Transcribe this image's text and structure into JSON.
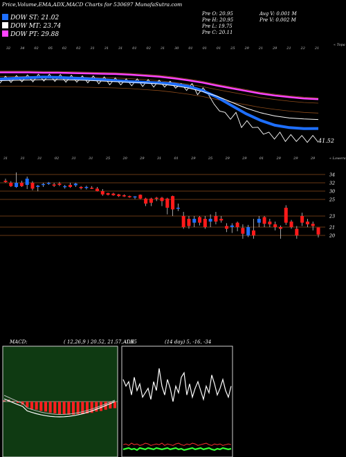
{
  "header": {
    "title": "Price,Volume,EMA,ADX,MACD Charts for 530697 MunafaSutra.com",
    "legend": [
      {
        "label": "DOW ST: 21.02",
        "color": "#1e6fff"
      },
      {
        "label": "DOW MT: 23.74",
        "color": "#ffffff"
      },
      {
        "label": "DOW PT: 29.88",
        "color": "#ff44ff"
      }
    ],
    "ohlc": [
      "Pre O: 20.95",
      "Pre H: 20.95",
      "Pre L: 19.75",
      "Pre C: 20.11"
    ],
    "avg_vol": "Avg V: 0.001 M",
    "pre_vol": "Pre V: 0.002 M"
  },
  "top_panel": {
    "corner_label": "« Topa",
    "date_labels": [
      "32",
      "34",
      "02",
      "05",
      "02",
      "02",
      "31",
      "31",
      "31",
      "01",
      "02",
      "31",
      "30",
      "01",
      "01",
      "01",
      "25",
      "29",
      "21",
      "29",
      "21",
      "22",
      "21"
    ],
    "value_label": "41.52",
    "colors": {
      "blue": "#1e6fff",
      "magenta": "#ff44ff",
      "brown": "#8b4a1a",
      "white": "#ffffff"
    }
  },
  "bottom_panel": {
    "corner_label": "« Lowera",
    "date_labels": [
      "31",
      "31",
      "31",
      "02",
      "31",
      "31",
      "25",
      "20",
      "29",
      "31",
      "01",
      "29",
      "25",
      "29",
      "29",
      "01",
      "29",
      "29",
      "29"
    ],
    "price_levels": [
      "34",
      "32",
      "30",
      "25",
      "23",
      "21",
      "20"
    ]
  },
  "macd": {
    "label": "MACD:",
    "params": "( 12,26,9 ) 20.52, 21.57, -1.05"
  },
  "adx": {
    "label": "ADX",
    "params": "(14 day) 5, -16, -34"
  },
  "chart_data": [
    {
      "type": "line",
      "panel": "ema-price",
      "series": [
        {
          "name": "DOW ST",
          "values": [
            36.0,
            36.2,
            36.4,
            36.6,
            36.5,
            36.3,
            36.1,
            35.8,
            35.5,
            35.2,
            35.0,
            34.8,
            34.5,
            33.8,
            32.5,
            30.5,
            28.0,
            25.5,
            23.5,
            22.0,
            21.3,
            21.0,
            21.02
          ]
        },
        {
          "name": "DOW MT",
          "values": [
            35.5,
            35.6,
            35.7,
            35.8,
            35.8,
            35.7,
            35.6,
            35.4,
            35.2,
            35.0,
            34.8,
            34.5,
            34.0,
            33.3,
            32.2,
            30.8,
            29.0,
            27.2,
            25.8,
            24.8,
            24.2,
            23.9,
            23.74
          ]
        },
        {
          "name": "DOW PT",
          "values": [
            38.0,
            38.0,
            38.0,
            37.9,
            37.9,
            37.8,
            37.7,
            37.6,
            37.5,
            37.3,
            37.0,
            36.7,
            36.2,
            35.6,
            34.9,
            34.0,
            33.2,
            32.4,
            31.6,
            31.0,
            30.5,
            30.1,
            29.88
          ]
        }
      ]
    },
    {
      "type": "candlestick",
      "panel": "price",
      "y_labels": [
        34,
        32,
        30,
        25,
        23,
        21,
        20
      ],
      "candles": [
        {
          "o": 32.5,
          "h": 33.0,
          "l": 32.0,
          "c": 32.2
        },
        {
          "o": 32.0,
          "h": 32.4,
          "l": 31.0,
          "c": 31.2
        },
        {
          "o": 31.0,
          "h": 34.5,
          "l": 30.8,
          "c": 32.0
        },
        {
          "o": 32.0,
          "h": 32.5,
          "l": 31.0,
          "c": 31.2
        },
        {
          "o": 31.5,
          "h": 33.5,
          "l": 30.5,
          "c": 33.0
        },
        {
          "o": 32.0,
          "h": 32.4,
          "l": 30.2,
          "c": 30.6
        },
        {
          "o": 31.0,
          "h": 31.5,
          "l": 29.9,
          "c": 31.3
        },
        {
          "o": 31.5,
          "h": 32.0,
          "l": 31.0,
          "c": 31.7
        },
        {
          "o": 31.8,
          "h": 32.2,
          "l": 31.5,
          "c": 32.0
        },
        {
          "o": 31.6,
          "h": 32.0,
          "l": 31.0,
          "c": 31.3
        },
        {
          "o": 31.8,
          "h": 32.2,
          "l": 31.2,
          "c": 31.5
        },
        {
          "o": 31.0,
          "h": 31.5,
          "l": 30.6,
          "c": 31.2
        },
        {
          "o": 31.5,
          "h": 32.0,
          "l": 30.8,
          "c": 31.0
        },
        {
          "o": 31.4,
          "h": 32.0,
          "l": 31.0,
          "c": 31.8
        },
        {
          "o": 31.0,
          "h": 31.2,
          "l": 30.4,
          "c": 30.7
        },
        {
          "o": 30.8,
          "h": 31.3,
          "l": 30.4,
          "c": 31.0
        },
        {
          "o": 30.8,
          "h": 31.2,
          "l": 30.5,
          "c": 30.6
        },
        {
          "o": 30.6,
          "h": 31.0,
          "l": 29.8,
          "c": 30.0
        },
        {
          "o": 30.0,
          "h": 30.5,
          "l": 27.2,
          "c": 28.0
        },
        {
          "o": 28.8,
          "h": 29.0,
          "l": 27.4,
          "c": 27.8
        },
        {
          "o": 28.5,
          "h": 29.0,
          "l": 27.2,
          "c": 27.5
        },
        {
          "o": 28.0,
          "h": 28.3,
          "l": 26.5,
          "c": 27.0
        },
        {
          "o": 27.5,
          "h": 28.0,
          "l": 26.5,
          "c": 26.8
        },
        {
          "o": 27.0,
          "h": 27.3,
          "l": 26.0,
          "c": 26.3
        },
        {
          "o": 26.5,
          "h": 27.0,
          "l": 25.2,
          "c": 26.8
        },
        {
          "o": 27.8,
          "h": 28.0,
          "l": 25.2,
          "c": 25.5
        },
        {
          "o": 25.5,
          "h": 26.0,
          "l": 24.2,
          "c": 24.5
        },
        {
          "o": 25.5,
          "h": 26.0,
          "l": 24.2,
          "c": 24.6
        },
        {
          "o": 26.0,
          "h": 26.5,
          "l": 24.8,
          "c": 25.5
        },
        {
          "o": 26.0,
          "h": 26.5,
          "l": 24.2,
          "c": 24.8
        },
        {
          "o": 25.5,
          "h": 26.0,
          "l": 23.2,
          "c": 24.0
        },
        {
          "o": 27.0,
          "h": 27.3,
          "l": 23.0,
          "c": 23.8
        },
        {
          "o": 24.0,
          "h": 24.5,
          "l": 23.6,
          "c": 24.0
        },
        {
          "o": 23.0,
          "h": 23.5,
          "l": 20.8,
          "c": 21.0
        },
        {
          "o": 22.5,
          "h": 23.0,
          "l": 20.8,
          "c": 21.2
        },
        {
          "o": 21.8,
          "h": 23.0,
          "l": 21.0,
          "c": 22.5
        },
        {
          "o": 22.8,
          "h": 23.0,
          "l": 21.3,
          "c": 21.8
        },
        {
          "o": 22.5,
          "h": 23.0,
          "l": 20.8,
          "c": 21.0
        },
        {
          "o": 22.0,
          "h": 23.2,
          "l": 21.0,
          "c": 22.5
        },
        {
          "o": 23.0,
          "h": 23.5,
          "l": 21.5,
          "c": 22.0
        },
        {
          "o": 22.5,
          "h": 23.0,
          "l": 21.8,
          "c": 22.2
        },
        {
          "o": 21.2,
          "h": 21.7,
          "l": 20.4,
          "c": 20.8
        },
        {
          "o": 21.0,
          "h": 21.7,
          "l": 20.3,
          "c": 21.3
        },
        {
          "o": 21.8,
          "h": 22.0,
          "l": 20.5,
          "c": 21.0
        },
        {
          "o": 20.9,
          "h": 21.5,
          "l": 19.6,
          "c": 20.2
        },
        {
          "o": 20.0,
          "h": 21.4,
          "l": 19.8,
          "c": 21.0
        },
        {
          "o": 20.6,
          "h": 22.5,
          "l": 19.6,
          "c": 20.0
        },
        {
          "o": 21.8,
          "h": 23.0,
          "l": 21.0,
          "c": 22.5
        },
        {
          "o": 22.8,
          "h": 23.0,
          "l": 21.0,
          "c": 21.6
        },
        {
          "o": 22.0,
          "h": 22.5,
          "l": 21.0,
          "c": 21.5
        },
        {
          "o": 21.5,
          "h": 22.0,
          "l": 20.6,
          "c": 21.0
        },
        {
          "o": 21.0,
          "h": 21.3,
          "l": 19.6,
          "c": 20.8
        },
        {
          "o": 24.0,
          "h": 24.3,
          "l": 21.4,
          "c": 21.8
        },
        {
          "o": 22.0,
          "h": 22.3,
          "l": 20.8,
          "c": 21.0
        },
        {
          "o": 20.8,
          "h": 21.2,
          "l": 19.6,
          "c": 20.0
        },
        {
          "o": 23.0,
          "h": 23.4,
          "l": 21.2,
          "c": 21.8
        },
        {
          "o": 22.0,
          "h": 22.5,
          "l": 21.0,
          "c": 21.5
        },
        {
          "o": 21.6,
          "h": 22.0,
          "l": 20.6,
          "c": 21.2
        },
        {
          "o": 20.95,
          "h": 20.95,
          "l": 19.75,
          "c": 20.11
        }
      ]
    },
    {
      "type": "bar",
      "panel": "macd-histogram",
      "values": [
        0.2,
        0.3,
        0.1,
        -0.2,
        -0.5,
        -0.9,
        -1.2,
        -1.3,
        -1.5,
        -1.6,
        -1.8,
        -1.9,
        -2.0,
        -2.0,
        -2.1,
        -2.1,
        -2.0,
        -2.0,
        -1.9,
        -1.8,
        -1.6,
        -1.5,
        -1.3,
        -1.1,
        -1.05
      ]
    },
    {
      "type": "line",
      "panel": "adx",
      "series": [
        {
          "name": "ADX",
          "values": [
            25,
            22,
            24,
            18,
            26,
            20,
            23,
            17,
            19,
            21,
            16,
            24,
            20,
            30,
            22,
            18,
            25,
            21,
            15,
            22,
            19,
            26,
            28,
            18,
            23,
            17,
            21,
            24,
            20,
            16,
            22,
            19,
            27,
            23,
            18,
            21,
            25,
            20,
            17,
            22
          ]
        },
        {
          "name": "+DI",
          "values": [
            8,
            9,
            7,
            10,
            8,
            9,
            7,
            8,
            10,
            9,
            7,
            8,
            9,
            8,
            10,
            7,
            9,
            8,
            7,
            9,
            10,
            8,
            7,
            9,
            8,
            10,
            9,
            7,
            8,
            9,
            10,
            8,
            7,
            9,
            8,
            9,
            7,
            8,
            9,
            8
          ]
        },
        {
          "name": "-DI",
          "values": [
            6,
            7,
            8,
            6,
            7,
            5,
            8,
            7,
            6,
            8,
            7,
            6,
            8,
            7,
            6,
            7,
            8,
            6,
            7,
            8,
            6,
            7,
            5,
            6,
            7,
            8,
            6,
            7,
            8,
            6,
            7,
            8,
            6,
            5,
            7,
            6,
            8,
            7,
            6,
            7
          ]
        }
      ]
    }
  ]
}
